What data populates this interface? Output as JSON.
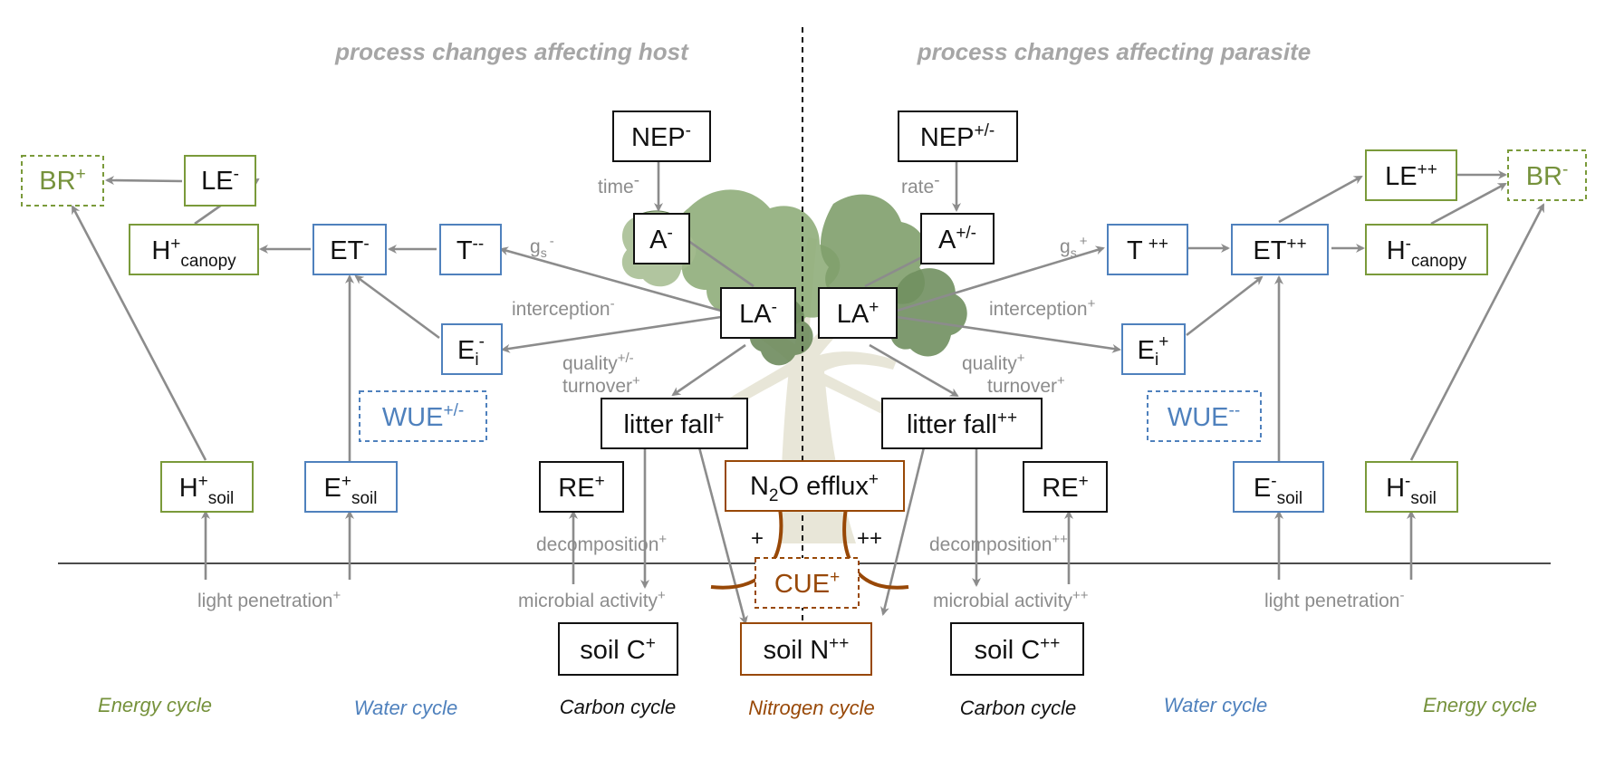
{
  "headers": {
    "host": "process changes affecting host",
    "parasite": "process changes affecting parasite"
  },
  "cycles": {
    "energy_left": "Energy cycle",
    "water_left": "Water cycle",
    "carbon_left": "Carbon cycle",
    "nitrogen": "Nitrogen cycle",
    "carbon_right": "Carbon cycle",
    "water_right": "Water cycle",
    "energy_right": "Energy cycle"
  },
  "left": {
    "br": {
      "base": "BR",
      "sup": "+"
    },
    "le": {
      "base": "LE",
      "sup": "-"
    },
    "h_canopy": {
      "base": "H",
      "sup": "+",
      "sub": "canopy"
    },
    "et": {
      "base": "ET",
      "sup": "-"
    },
    "t": {
      "base": "T",
      "sup": "--"
    },
    "ei": {
      "base": "E",
      "sub": "i",
      "sup": "-"
    },
    "wue": {
      "base": "WUE",
      "sup": "+/-"
    },
    "h_soil": {
      "base": "H",
      "sup": "+",
      "sub": "soil"
    },
    "e_soil": {
      "base": "E",
      "sup": "+",
      "sub": "soil"
    },
    "nep": {
      "base": "NEP",
      "sup": "-"
    },
    "a": {
      "base": "A",
      "sup": "-"
    },
    "la": {
      "base": "LA",
      "sup": "-"
    },
    "litter": {
      "base": "litter fall",
      "sup": "+"
    },
    "re": {
      "base": "RE",
      "sup": "+"
    },
    "soil_c": {
      "base": "soil C",
      "sup": "+"
    }
  },
  "right": {
    "br": {
      "base": "BR",
      "sup": "-"
    },
    "le": {
      "base": "LE",
      "sup": "++"
    },
    "h_canopy": {
      "base": "H",
      "sup": "-",
      "sub": "canopy"
    },
    "et": {
      "base": "ET",
      "sup": "++"
    },
    "t": {
      "base": "T",
      "sup": "++"
    },
    "ei": {
      "base": "E",
      "sub": "i",
      "sup": "+"
    },
    "wue": {
      "base": "WUE",
      "sup": "--"
    },
    "h_soil": {
      "base": "H",
      "sup": "-",
      "sub": "soil"
    },
    "e_soil": {
      "base": "E",
      "sup": "-",
      "sub": "soil"
    },
    "nep": {
      "base": "NEP",
      "sup": "+/-"
    },
    "a": {
      "base": "A",
      "sup": "+/-"
    },
    "la": {
      "base": "LA",
      "sup": "+"
    },
    "litter": {
      "base": "litter fall",
      "sup": "++"
    },
    "re": {
      "base": "RE",
      "sup": "+"
    },
    "soil_c": {
      "base": "soil C",
      "sup": "++"
    }
  },
  "center": {
    "n2o": {
      "pre": "N",
      "sub": "2",
      "base": "O efflux",
      "sup": "+"
    },
    "cue": {
      "base": "CUE",
      "sup": "+"
    },
    "soil_n": {
      "base": "soil N",
      "sup": "++"
    },
    "plus_left": "+",
    "plus_right": "++"
  },
  "processes": {
    "time": {
      "base": "time",
      "sup": "-"
    },
    "rate": {
      "base": "rate",
      "sup": "-"
    },
    "gs_left": {
      "base": "g",
      "sub": "s",
      "sup": "-"
    },
    "gs_right": {
      "base": "g",
      "sub": "s",
      "sup": "+"
    },
    "interception_left": {
      "base": "interception",
      "sup": "-"
    },
    "interception_right": {
      "base": "interception",
      "sup": "+"
    },
    "quality_left": {
      "base": "quality",
      "sup": "+/-"
    },
    "quality_right": {
      "base": "quality",
      "sup": "+"
    },
    "turnover_left": {
      "base": "turnover",
      "sup": "+"
    },
    "turnover_right": {
      "base": "turnover",
      "sup": "+"
    },
    "decomp_left": {
      "base": "decomposition",
      "sup": "+"
    },
    "decomp_right": {
      "base": "decomposition",
      "sup": "++"
    },
    "microbial_left": {
      "base": "microbial activity",
      "sup": "+"
    },
    "microbial_right": {
      "base": "microbial activity",
      "sup": "++"
    },
    "light_left": {
      "base": "light penetration",
      "sup": "+"
    },
    "light_right": {
      "base": "light penetration",
      "sup": "-"
    }
  },
  "colors": {
    "energy": "#76923c",
    "water": "#4f81bd",
    "carbon": "#111111",
    "nitrogen": "#984807",
    "process": "#8c8c8c",
    "header": "#a6a6a6"
  },
  "tree_icon": "tree-illustration-icon"
}
